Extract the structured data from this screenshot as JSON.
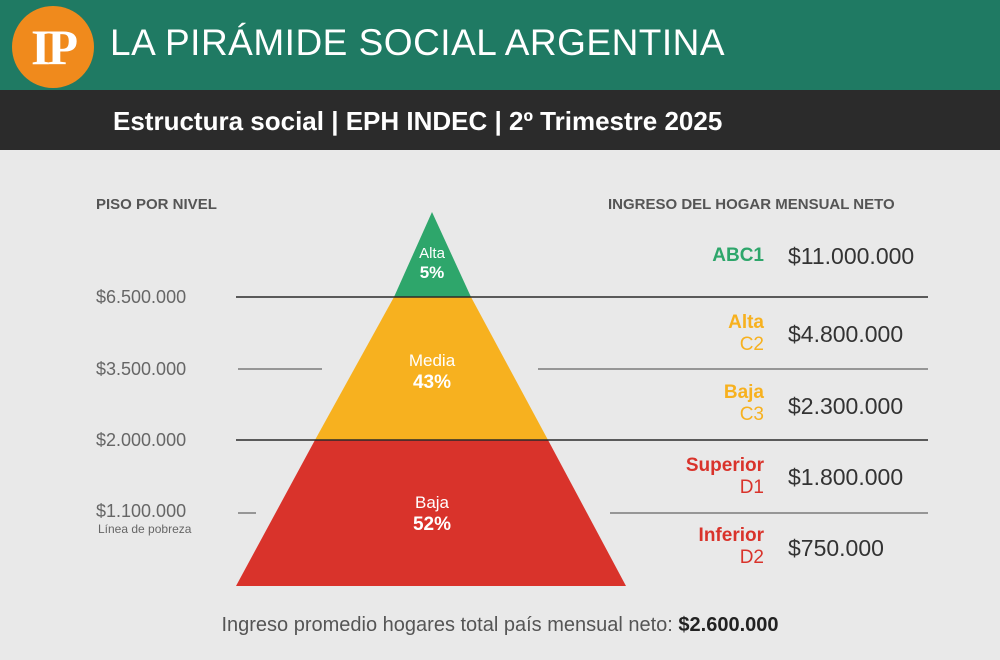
{
  "header": {
    "logo": "IP",
    "title": "LA PIRÁMIDE SOCIAL ARGENTINA"
  },
  "subtitle": "Estructura social | EPH INDEC | 2º Trimestre 2025",
  "left_header": "PISO POR NIVEL",
  "right_header": "INGRESO DEL HOGAR MENSUAL NETO",
  "thresholds": [
    "$6.500.000",
    "$3.500.000",
    "$2.000.000",
    "$1.100.000"
  ],
  "poverty_label": "Línea de pobreza",
  "colors": {
    "alta": "#2ea66b",
    "media": "#f7b11f",
    "baja": "#d9332b",
    "header": "#1f7a63",
    "logo": "#f08a1c"
  },
  "chart_data": {
    "type": "pyramid",
    "title": "LA PIRÁMIDE SOCIAL ARGENTINA",
    "series": [
      {
        "values": [
          {
            "label": "Alta",
            "value": "5%",
            "percent": 5
          },
          {
            "label": "Media",
            "value": "43%",
            "percent": 43
          },
          {
            "label": "Baja",
            "value": "52%",
            "percent": 52
          }
        ]
      }
    ],
    "segments": [
      {
        "name": "ABC1",
        "sub": "",
        "income": "$11.000.000",
        "color": "alta"
      },
      {
        "name": "Alta",
        "sub": "C2",
        "income": "$4.800.000",
        "color": "media"
      },
      {
        "name": "Baja",
        "sub": "C3",
        "income": "$2.300.000",
        "color": "media"
      },
      {
        "name": "Superior",
        "sub": "D1",
        "income": "$1.800.000",
        "color": "baja"
      },
      {
        "name": "Inferior",
        "sub": "D2",
        "income": "$750.000",
        "color": "baja"
      }
    ]
  },
  "footer": {
    "label": "Ingreso promedio hogares total país mensual neto:",
    "value": "$2.600.000"
  }
}
